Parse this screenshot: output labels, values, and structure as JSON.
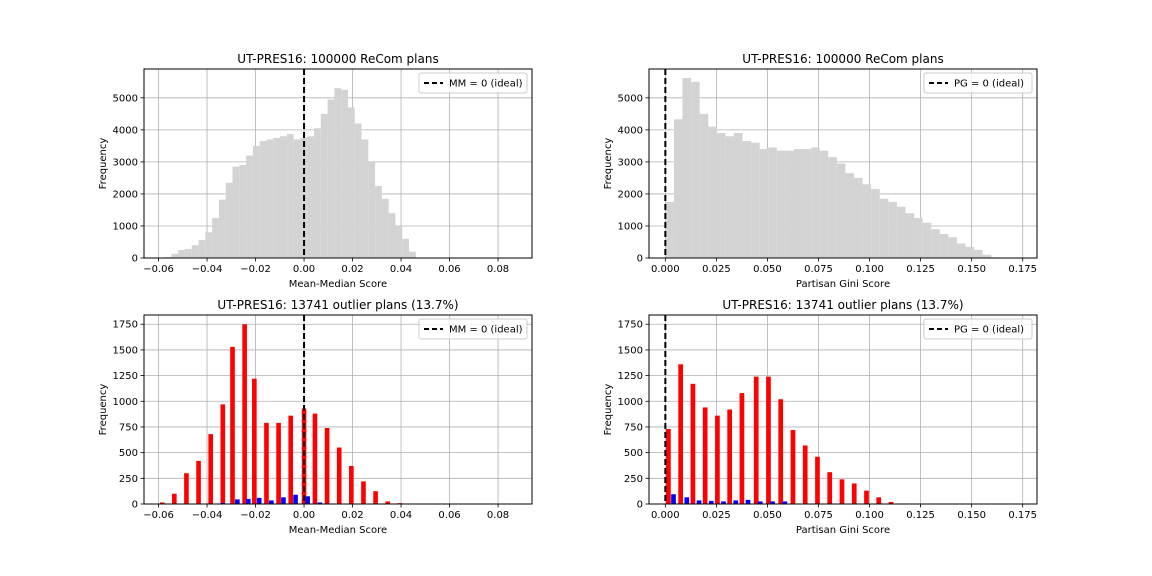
{
  "chart_data": [
    {
      "type": "bar",
      "title": "UT-PRES16: 100000 ReCom plans",
      "xlabel": "Mean-Median Score",
      "ylabel": "Frequency",
      "xlim": [
        -0.066,
        0.094
      ],
      "ylim": [
        0,
        5900
      ],
      "xticks": [
        -0.06,
        -0.04,
        -0.02,
        0.0,
        0.02,
        0.04,
        0.06,
        0.08
      ],
      "xtick_labels": [
        "−0.06",
        "−0.04",
        "−0.02",
        "0.00",
        "0.02",
        "0.04",
        "0.06",
        "0.08"
      ],
      "yticks": [
        0,
        1000,
        2000,
        3000,
        4000,
        5000
      ],
      "ytick_labels": [
        "0",
        "1000",
        "2000",
        "3000",
        "4000",
        "5000"
      ],
      "grid": true,
      "legend": {
        "position": "top-right",
        "label": "MM = 0 (ideal)"
      },
      "ideal_line_x": 0.0,
      "histogram": {
        "bin_start": -0.0575,
        "bin_width": 0.0028,
        "color": "#d3d3d3",
        "counts": [
          30,
          130,
          250,
          280,
          400,
          560,
          800,
          1250,
          1820,
          2350,
          2850,
          2900,
          3200,
          3500,
          3650,
          3700,
          3750,
          3800,
          3870,
          3700,
          3750,
          3800,
          4050,
          4500,
          4950,
          5300,
          5250,
          4700,
          4200,
          3700,
          3000,
          2250,
          1850,
          1400,
          1000,
          600,
          200
        ]
      }
    },
    {
      "type": "bar",
      "title": "UT-PRES16: 100000 ReCom plans",
      "xlabel": "Partisan Gini Score",
      "ylabel": "Frequency",
      "xlim": [
        -0.008,
        0.182
      ],
      "ylim": [
        0,
        5900
      ],
      "xticks": [
        0.0,
        0.025,
        0.05,
        0.075,
        0.1,
        0.125,
        0.15,
        0.175
      ],
      "xtick_labels": [
        "0.000",
        "0.025",
        "0.050",
        "0.075",
        "0.100",
        "0.125",
        "0.150",
        "0.175"
      ],
      "yticks": [
        0,
        1000,
        2000,
        3000,
        4000,
        5000
      ],
      "ytick_labels": [
        "0",
        "1000",
        "2000",
        "3000",
        "4000",
        "5000"
      ],
      "grid": true,
      "legend": {
        "position": "top-right",
        "label": "PG = 0 (ideal)"
      },
      "ideal_line_x": 0.0,
      "histogram": {
        "bin_start": 0.0,
        "bin_width": 0.0042,
        "color": "#d3d3d3",
        "counts": [
          1750,
          4330,
          5620,
          5500,
          4500,
          4100,
          3900,
          3800,
          3900,
          3650,
          3600,
          3400,
          3450,
          3350,
          3350,
          3400,
          3400,
          3450,
          3350,
          3150,
          2950,
          2650,
          2500,
          2300,
          2150,
          1850,
          1750,
          1600,
          1400,
          1250,
          1100,
          900,
          750,
          650,
          450,
          350,
          250,
          100,
          20
        ]
      }
    },
    {
      "type": "bar",
      "title": "UT-PRES16: 13741 outlier plans (13.7%)",
      "xlabel": "Mean-Median Score",
      "ylabel": "Frequency",
      "xlim": [
        -0.066,
        0.094
      ],
      "ylim": [
        0,
        1840
      ],
      "xticks": [
        -0.06,
        -0.04,
        -0.02,
        0.0,
        0.02,
        0.04,
        0.06,
        0.08
      ],
      "xtick_labels": [
        "−0.06",
        "−0.04",
        "−0.02",
        "0.00",
        "0.02",
        "0.04",
        "0.06",
        "0.08"
      ],
      "yticks": [
        0,
        250,
        500,
        750,
        1000,
        1250,
        1500,
        1750
      ],
      "ytick_labels": [
        "0",
        "250",
        "500",
        "750",
        "1000",
        "1250",
        "1500",
        "1750"
      ],
      "grid": true,
      "legend": {
        "position": "top-right",
        "label": "MM = 0 (ideal)"
      },
      "ideal_line_x": 0.0,
      "bar_width": 0.0019,
      "series": [
        {
          "color": "#ff0000",
          "x": [
            -0.0585,
            -0.0535,
            -0.0485,
            -0.0435,
            -0.0385,
            -0.0335,
            -0.0295,
            -0.0245,
            -0.0205,
            -0.0155,
            -0.0105,
            -0.0055,
            0.0,
            0.0045,
            0.0095,
            0.0145,
            0.0195,
            0.0245,
            0.0295,
            0.0345,
            0.0395,
            0.0445
          ],
          "values": [
            15,
            100,
            300,
            420,
            680,
            970,
            1530,
            1750,
            1220,
            790,
            790,
            860,
            930,
            880,
            740,
            550,
            370,
            220,
            125,
            25,
            8,
            3
          ]
        },
        {
          "color": "#0000ff",
          "x": [
            -0.0335,
            -0.0275,
            -0.023,
            -0.0185,
            -0.0135,
            -0.0085,
            -0.0035,
            0.0015,
            0.0065,
            0.0115
          ],
          "values": [
            10,
            45,
            50,
            60,
            35,
            65,
            90,
            75,
            15,
            5
          ]
        }
      ]
    },
    {
      "type": "bar",
      "title": "UT-PRES16: 13741 outlier plans (13.7%)",
      "xlabel": "Partisan Gini Score",
      "ylabel": "Frequency",
      "xlim": [
        -0.008,
        0.182
      ],
      "ylim": [
        0,
        1840
      ],
      "xticks": [
        0.0,
        0.025,
        0.05,
        0.075,
        0.1,
        0.125,
        0.15,
        0.175
      ],
      "xtick_labels": [
        "0.000",
        "0.025",
        "0.050",
        "0.075",
        "0.100",
        "0.125",
        "0.150",
        "0.175"
      ],
      "yticks": [
        0,
        250,
        500,
        750,
        1000,
        1250,
        1500,
        1750
      ],
      "ytick_labels": [
        "0",
        "250",
        "500",
        "750",
        "1000",
        "1250",
        "1500",
        "1750"
      ],
      "grid": true,
      "legend": {
        "position": "top-right",
        "label": "PG = 0 (ideal)"
      },
      "ideal_line_x": 0.0,
      "bar_width": 0.0023,
      "series": [
        {
          "color": "#ff0000",
          "x": [
            0.0015,
            0.0075,
            0.0135,
            0.0195,
            0.0255,
            0.0315,
            0.0375,
            0.0445,
            0.0505,
            0.0565,
            0.0625,
            0.0685,
            0.0745,
            0.0805,
            0.0865,
            0.0925,
            0.0985,
            0.1045,
            0.1105,
            0.1165
          ],
          "values": [
            730,
            1360,
            1170,
            940,
            860,
            920,
            1080,
            1240,
            1240,
            1020,
            720,
            570,
            460,
            310,
            240,
            200,
            130,
            65,
            20,
            5
          ]
        },
        {
          "color": "#0000ff",
          "x": [
            0.004,
            0.0105,
            0.0165,
            0.0225,
            0.0285,
            0.0345,
            0.0405,
            0.0465,
            0.0525,
            0.0585
          ],
          "values": [
            95,
            65,
            35,
            30,
            25,
            35,
            40,
            25,
            25,
            25
          ]
        }
      ]
    }
  ]
}
